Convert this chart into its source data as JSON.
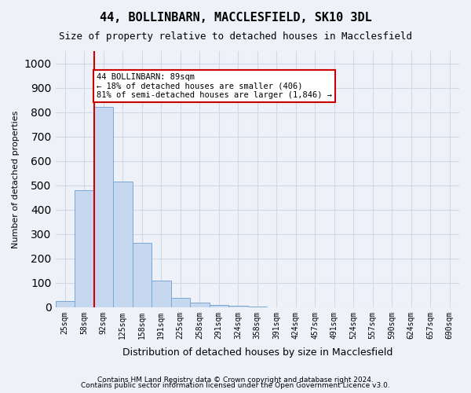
{
  "title1": "44, BOLLINBARN, MACCLESFIELD, SK10 3DL",
  "title2": "Size of property relative to detached houses in Macclesfield",
  "xlabel": "Distribution of detached houses by size in Macclesfield",
  "ylabel": "Number of detached properties",
  "footnote1": "Contains HM Land Registry data © Crown copyright and database right 2024.",
  "footnote2": "Contains public sector information licensed under the Open Government Licence v3.0.",
  "bin_labels": [
    "25sqm",
    "58sqm",
    "92sqm",
    "125sqm",
    "158sqm",
    "191sqm",
    "225sqm",
    "258sqm",
    "291sqm",
    "324sqm",
    "358sqm",
    "391sqm",
    "424sqm",
    "457sqm",
    "491sqm",
    "524sqm",
    "557sqm",
    "590sqm",
    "624sqm",
    "657sqm",
    "690sqm"
  ],
  "bar_values": [
    25,
    480,
    820,
    515,
    265,
    110,
    38,
    20,
    10,
    5,
    2,
    0,
    0,
    0,
    0,
    0,
    0,
    0,
    0,
    0,
    0
  ],
  "bar_color": "#c5d8f0",
  "bar_edge_color": "#7aa8d4",
  "annotation_text": "44 BOLLINBARN: 89sqm\n← 18% of detached houses are smaller (406)\n81% of semi-detached houses are larger (1,846) →",
  "annotation_box_color": "#ffffff",
  "annotation_box_edge_color": "#cc0000",
  "vline_x": 1.5,
  "vline_color": "#cc0000",
  "ylim": [
    0,
    1050
  ],
  "yticks": [
    0,
    100,
    200,
    300,
    400,
    500,
    600,
    700,
    800,
    900,
    1000
  ],
  "grid_color": "#d0d8e8",
  "bg_color": "#eef2f8"
}
